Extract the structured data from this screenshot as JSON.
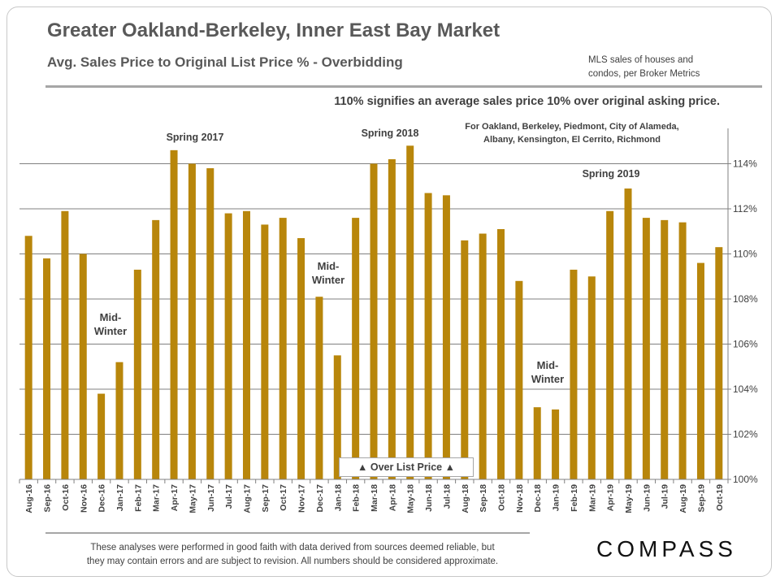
{
  "header": {
    "title": "Greater Oakland-Berkeley, Inner East Bay Market",
    "subtitle": "Avg. Sales Price to Original  List Price % - Overbidding",
    "source_line1": "MLS sales of houses and",
    "source_line2": "condos,  per Broker Metrics",
    "explanation": "110% signifies an average sales price 10% over original asking price."
  },
  "chart_data": {
    "type": "bar",
    "categories": [
      "Aug-16",
      "Sep-16",
      "Oct-16",
      "Nov-16",
      "Dec-16",
      "Jan-17",
      "Feb-17",
      "Mar-17",
      "Apr-17",
      "May-17",
      "Jun-17",
      "Jul-17",
      "Aug-17",
      "Sep-17",
      "Oct-17",
      "Nov-17",
      "Dec-17",
      "Jan-18",
      "Feb-18",
      "Mar-18",
      "Apr-18",
      "May-18",
      "Jun-18",
      "Jul-18",
      "Aug-18",
      "Sep-18",
      "Oct-18",
      "Nov-18",
      "Dec-18",
      "Jan-19",
      "Feb-19",
      "Mar-19",
      "Apr-19",
      "May-19",
      "Jun-19",
      "Jul-19",
      "Aug-19",
      "Sep-19",
      "Oct-19"
    ],
    "values": [
      110.8,
      109.8,
      111.9,
      110.0,
      103.8,
      105.2,
      109.3,
      111.5,
      114.6,
      114.0,
      113.8,
      111.8,
      111.9,
      111.3,
      111.6,
      110.7,
      108.1,
      105.5,
      111.6,
      114.0,
      114.2,
      114.8,
      112.7,
      112.6,
      110.6,
      110.9,
      111.1,
      108.8,
      103.2,
      103.1,
      109.3,
      109.0,
      111.9,
      112.9,
      111.6,
      111.5,
      111.4,
      109.6,
      110.3
    ],
    "ylim": [
      100,
      116
    ],
    "yticks": [
      100,
      102,
      104,
      106,
      108,
      110,
      112,
      114
    ],
    "ytick_labels": [
      "100%",
      "102%",
      "104%",
      "106%",
      "108%",
      "110%",
      "112%",
      "114%"
    ],
    "bar_color": "#b8860b",
    "grid": true,
    "y_axis_position": "right",
    "annotations": {
      "spring_2017": "Spring 2017",
      "spring_2018": "Spring 2018",
      "spring_2019": "Spring 2019",
      "midwinter1_line1": "Mid-",
      "midwinter1_line2": "Winter",
      "midwinter2_line1": "Mid-",
      "midwinter2_line2": "Winter",
      "midwinter3_line1": "Mid-",
      "midwinter3_line2": "Winter",
      "coverage_line1": "For Oakland,  Berkeley,  Piedmont, City of Alameda,",
      "coverage_line2": "Albany,  Kensington,  El Cerrito, Richmond",
      "over_list": "▲ Over List Price ▲"
    }
  },
  "footer": {
    "disclaimer_line1": "These analyses were performed in good faith with data derived from sources deemed reliable, but",
    "disclaimer_line2": "they may contain  errors and are subject to revision.  All numbers should be considered  approximate.",
    "logo": "COMPASS"
  }
}
